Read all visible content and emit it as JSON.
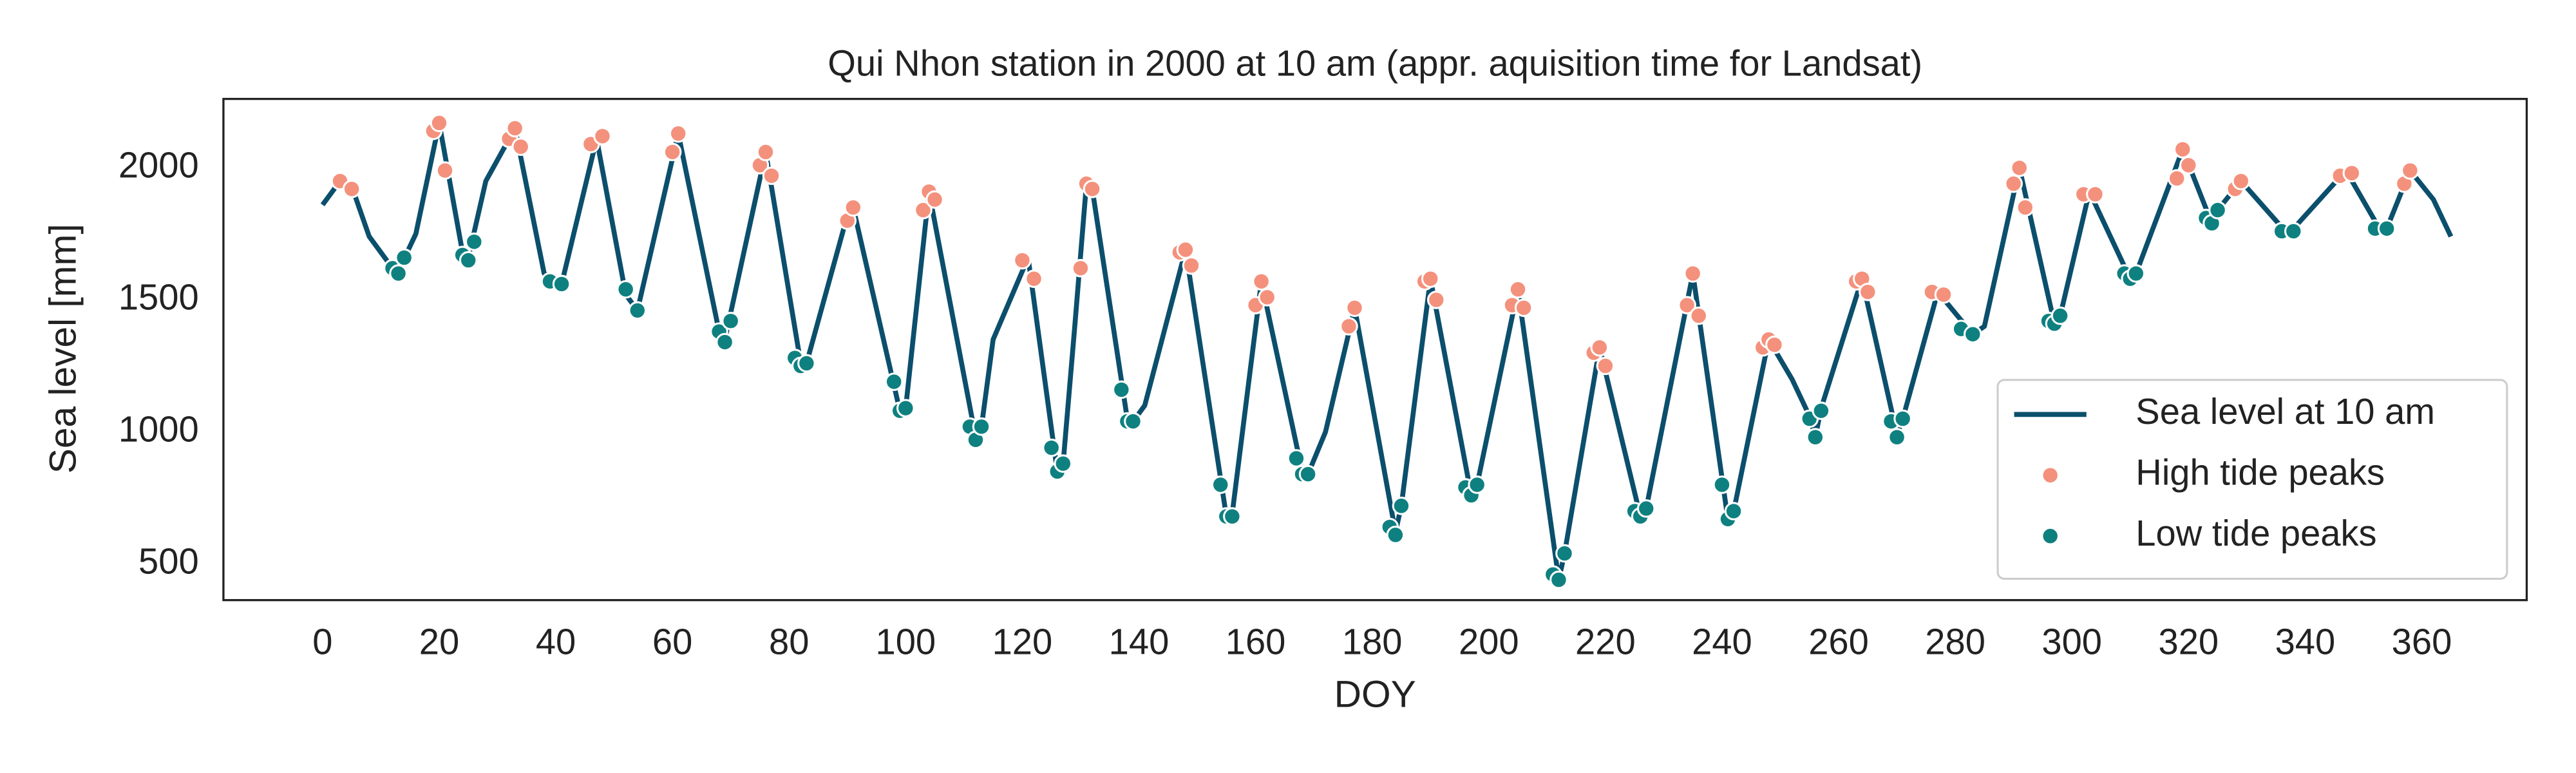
{
  "chart_data": {
    "type": "line",
    "title": "Qui Nhon station in 2000 at 10 am (appr. aquisition time for Landsat)",
    "x_label": "DOY",
    "y_label": "Sea level [mm]",
    "xlim": [
      -17,
      378
    ],
    "ylim": [
      363,
      2261
    ],
    "xticks": [
      0,
      20,
      40,
      60,
      80,
      100,
      120,
      140,
      160,
      180,
      200,
      220,
      240,
      260,
      280,
      300,
      320,
      340,
      360
    ],
    "yticks": [
      500,
      1000,
      1500,
      2000
    ],
    "grid": false,
    "legend": "lower right",
    "series": [
      {
        "name": "Sea level at 10 am",
        "type": "line",
        "color": "#0b4f6c",
        "x": [
          0,
          3,
          5,
          8,
          12,
          13,
          16,
          20,
          24,
          25,
          28,
          33,
          38,
          41,
          47,
          52,
          54,
          61,
          68,
          69,
          76,
          82,
          83,
          86,
          90,
          91,
          99,
          100,
          104,
          112,
          113,
          115,
          121,
          126,
          127,
          129,
          131,
          132,
          138,
          139,
          141,
          148,
          155,
          156,
          161,
          168,
          169,
          172,
          177,
          184,
          185,
          190,
          197,
          198,
          205,
          212,
          213,
          219,
          226,
          227,
          235,
          241,
          242,
          248,
          252,
          255,
          256,
          257,
          264,
          270,
          271,
          277,
          283,
          285,
          287,
          291,
          297,
          298,
          303,
          310,
          311,
          319,
          324,
          325,
          329,
          337,
          338,
          347,
          353,
          354,
          358,
          362,
          365
        ],
        "values": [
          1860,
          1950,
          1930,
          1740,
          1620,
          1610,
          1750,
          2170,
          1680,
          1660,
          1950,
          2150,
          1600,
          1560,
          2110,
          1520,
          1460,
          2130,
          1380,
          1350,
          2060,
          1260,
          1260,
          1500,
          1820,
          1850,
          1080,
          1090,
          1910,
          980,
          1020,
          1350,
          1660,
          850,
          880,
          1400,
          1940,
          1920,
          1050,
          1040,
          1100,
          1690,
          680,
          690,
          1570,
          850,
          840,
          1000,
          1470,
          620,
          720,
          1580,
          760,
          800,
          1540,
          440,
          540,
          1320,
          680,
          710,
          1600,
          670,
          700,
          1350,
          1200,
          1060,
          980,
          1090,
          1580,
          990,
          1050,
          1530,
          1370,
          1400,
          1600,
          2000,
          1410,
          1440,
          1910,
          1580,
          1600,
          2070,
          1790,
          1840,
          1950,
          1750,
          1770,
          1990,
          1760,
          1770,
          1990,
          1880,
          1740
        ]
      },
      {
        "name": "High tide peaks",
        "type": "scatter",
        "color": "#f4917c",
        "x": [
          3,
          5,
          19,
          20,
          21,
          32,
          33,
          34,
          46,
          48,
          60,
          61,
          75,
          76,
          77,
          90,
          91,
          103,
          104,
          105,
          120,
          122,
          130,
          131,
          132,
          147,
          148,
          149,
          160,
          161,
          162,
          176,
          177,
          189,
          190,
          191,
          204,
          205,
          206,
          218,
          219,
          220,
          234,
          235,
          236,
          247,
          248,
          249,
          263,
          264,
          265,
          276,
          278,
          290,
          291,
          292,
          302,
          304,
          318,
          319,
          320,
          328,
          329,
          346,
          348,
          357,
          358
        ],
        "values": [
          1950,
          1920,
          2140,
          2170,
          1990,
          2110,
          2150,
          2080,
          2090,
          2120,
          2060,
          2130,
          2010,
          2060,
          1970,
          1800,
          1850,
          1840,
          1910,
          1880,
          1650,
          1580,
          1620,
          1940,
          1920,
          1680,
          1690,
          1630,
          1480,
          1570,
          1510,
          1400,
          1470,
          1570,
          1580,
          1500,
          1480,
          1540,
          1470,
          1300,
          1320,
          1250,
          1480,
          1600,
          1440,
          1320,
          1350,
          1330,
          1570,
          1580,
          1530,
          1530,
          1520,
          1940,
          2000,
          1850,
          1900,
          1900,
          1960,
          2070,
          2010,
          1920,
          1950,
          1970,
          1980,
          1940,
          1990
        ]
      },
      {
        "name": "Low tide peaks",
        "type": "scatter",
        "color": "#0f8080",
        "x": [
          12,
          13,
          14,
          24,
          25,
          26,
          39,
          41,
          52,
          54,
          68,
          69,
          70,
          81,
          82,
          83,
          98,
          99,
          100,
          111,
          112,
          113,
          125,
          126,
          127,
          137,
          138,
          139,
          154,
          155,
          156,
          167,
          168,
          169,
          183,
          184,
          185,
          196,
          197,
          198,
          211,
          212,
          213,
          225,
          226,
          227,
          240,
          241,
          242,
          255,
          256,
          257,
          269,
          270,
          271,
          281,
          283,
          296,
          297,
          298,
          309,
          310,
          311,
          323,
          324,
          325,
          336,
          338,
          352,
          354
        ],
        "values": [
          1620,
          1600,
          1660,
          1670,
          1650,
          1720,
          1570,
          1560,
          1540,
          1460,
          1380,
          1340,
          1420,
          1280,
          1250,
          1260,
          1190,
          1080,
          1090,
          1020,
          970,
          1020,
          940,
          850,
          880,
          1160,
          1040,
          1040,
          800,
          680,
          680,
          900,
          840,
          840,
          640,
          610,
          720,
          790,
          760,
          800,
          460,
          440,
          540,
          700,
          680,
          710,
          800,
          670,
          700,
          1050,
          980,
          1080,
          1040,
          980,
          1050,
          1390,
          1370,
          1420,
          1410,
          1440,
          1600,
          1580,
          1600,
          1810,
          1790,
          1840,
          1760,
          1760,
          1770,
          1770
        ]
      }
    ]
  }
}
